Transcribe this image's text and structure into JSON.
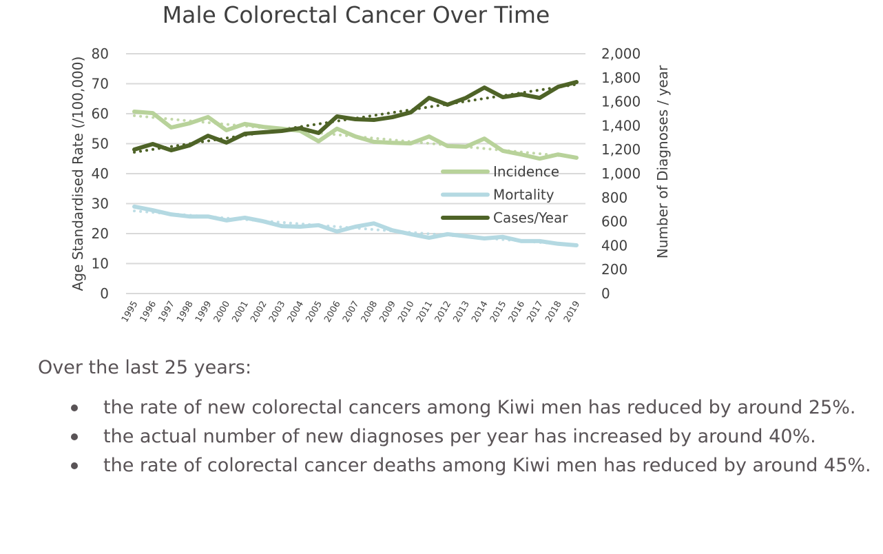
{
  "chart_data": {
    "type": "line",
    "title": "Male Colorectal Cancer Over Time",
    "xlabel": "",
    "ylabel": "Age Standardised Rate (/100,000)",
    "y2label": "Number of Diagnoses / year",
    "x": [
      "1995",
      "1996",
      "1997",
      "1998",
      "1999",
      "2000",
      "2001",
      "2002",
      "2003",
      "2004",
      "2005",
      "2006",
      "2007",
      "2008",
      "2009",
      "2010",
      "2011",
      "2012",
      "2013",
      "2014",
      "2015",
      "2016",
      "2017",
      "2018",
      "2019"
    ],
    "ylim": [
      0,
      80
    ],
    "y2lim": [
      0,
      2000
    ],
    "yticks": [
      "0",
      "10",
      "20",
      "30",
      "40",
      "50",
      "60",
      "70",
      "80"
    ],
    "y2ticks": [
      "0",
      "200",
      "400",
      "600",
      "800",
      "1,000",
      "1,200",
      "1,400",
      "1,600",
      "1,800",
      "2,000"
    ],
    "grid": true,
    "legend_position": "center-right",
    "series": [
      {
        "name": "Incidence",
        "axis": "left",
        "color": "#b8d29a",
        "trendline": "linear dotted",
        "values": [
          60.7,
          60.2,
          55.4,
          56.8,
          58.9,
          54.5,
          56.6,
          55.6,
          55.0,
          54.3,
          50.8,
          55.0,
          52.4,
          50.6,
          50.3,
          50.1,
          52.4,
          49.2,
          49.0,
          51.7,
          47.6,
          46.4,
          45.0,
          46.4,
          45.3
        ]
      },
      {
        "name": "Mortality",
        "axis": "left",
        "color": "#b4d9e2",
        "trendline": "linear dotted",
        "values": [
          29.0,
          27.8,
          26.4,
          25.7,
          25.7,
          24.4,
          25.3,
          24.1,
          22.5,
          22.3,
          22.8,
          20.7,
          22.3,
          23.4,
          21.1,
          19.8,
          18.6,
          19.8,
          19.1,
          18.4,
          18.9,
          17.5,
          17.5,
          16.6,
          16.1
        ]
      },
      {
        "name": "Cases/Year",
        "axis": "right",
        "color": "#4e6327",
        "trendline": "linear dotted",
        "values": [
          1201,
          1247,
          1195,
          1236,
          1316,
          1259,
          1333,
          1345,
          1356,
          1379,
          1339,
          1477,
          1454,
          1448,
          1471,
          1511,
          1632,
          1575,
          1632,
          1718,
          1638,
          1661,
          1632,
          1724,
          1764
        ]
      }
    ]
  },
  "summary": {
    "intro": "Over the last 25 years:",
    "bullets": [
      "the rate of new colorectal cancers among Kiwi men has reduced by around 25%.",
      "the actual number of new diagnoses per year has increased by around 40%.",
      "the rate of colorectal cancer deaths among Kiwi men has reduced by around 45%."
    ]
  }
}
